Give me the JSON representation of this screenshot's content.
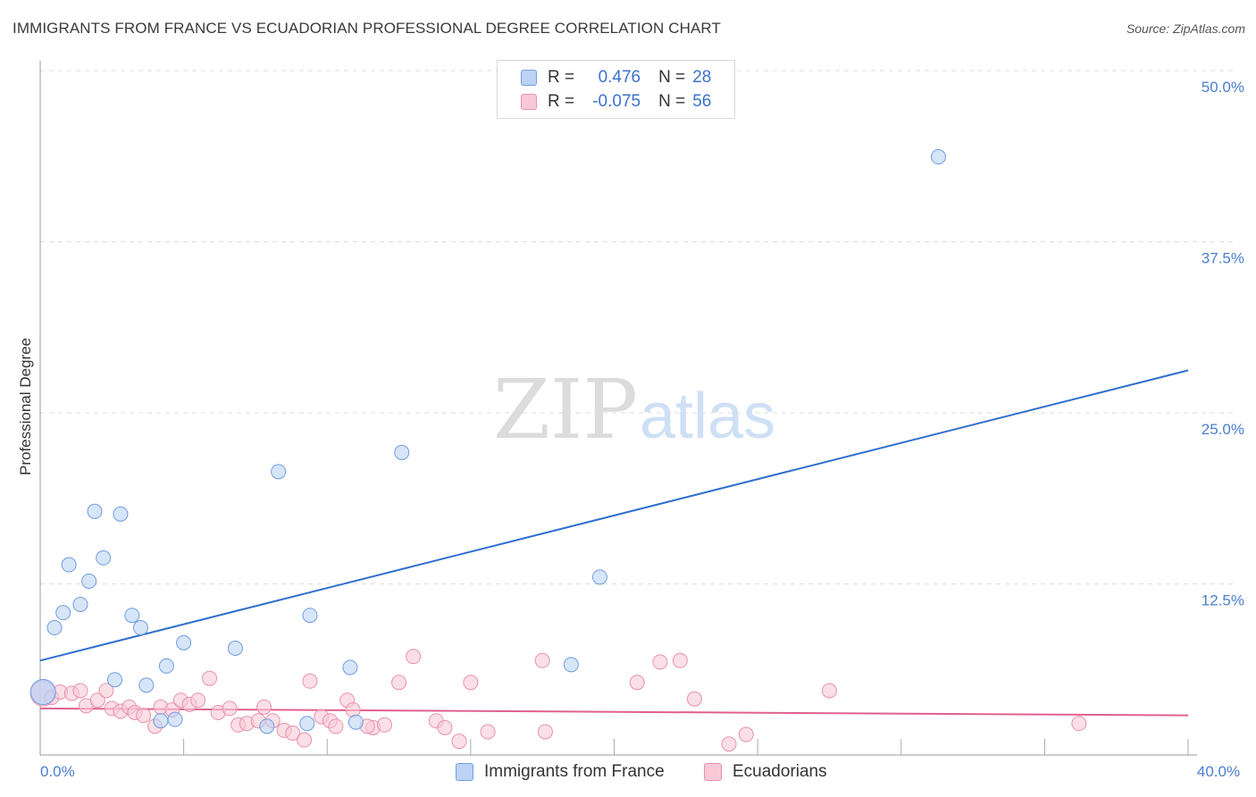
{
  "header": {
    "title": "IMMIGRANTS FROM FRANCE VS ECUADORIAN PROFESSIONAL DEGREE CORRELATION CHART",
    "source": "Source: ZipAtlas.com"
  },
  "watermark": {
    "zip": "ZIP",
    "atlas": "atlas"
  },
  "legend_stats": {
    "r_label": "R =",
    "n_label": "N =",
    "france": {
      "r": "0.476",
      "n": "28"
    },
    "ecuador": {
      "r": "-0.075",
      "n": "56"
    }
  },
  "colors": {
    "france_fill": "#bcd3f5",
    "france_stroke": "#6f9de0",
    "france_line": "#2f6fce",
    "ecuador_fill": "#f9c9d7",
    "ecuador_stroke": "#e891ad",
    "ecuador_line": "#e06090",
    "grid": "#dddddd",
    "tick_text": "#4a7fd0"
  },
  "chart_data": {
    "type": "scatter",
    "title": "IMMIGRANTS FROM FRANCE VS ECUADORIAN PROFESSIONAL DEGREE CORRELATION CHART",
    "xlabel": "",
    "ylabel": "Professional Degree",
    "xlim": [
      0,
      40
    ],
    "ylim": [
      0,
      50
    ],
    "x_tick_labels": [
      {
        "value": 0,
        "label": "0.0%"
      },
      {
        "value": 40,
        "label": "40.0%"
      }
    ],
    "y_tick_labels": [
      {
        "value": 12.5,
        "label": "12.5%"
      },
      {
        "value": 25,
        "label": "25.0%"
      },
      {
        "value": 37.5,
        "label": "37.5%"
      },
      {
        "value": 50,
        "label": "50.0%"
      }
    ],
    "series": [
      {
        "name": "Immigrants from France",
        "r": 0.476,
        "n": 28,
        "trend": {
          "x0": 0,
          "y0": 6.9,
          "x1": 40,
          "y1": 28.1
        },
        "points": [
          {
            "x": 0.1,
            "y": 4.6,
            "big": true
          },
          {
            "x": 0.5,
            "y": 9.3
          },
          {
            "x": 0.8,
            "y": 10.4
          },
          {
            "x": 1.0,
            "y": 13.9
          },
          {
            "x": 1.4,
            "y": 11.0
          },
          {
            "x": 1.7,
            "y": 12.7
          },
          {
            "x": 1.9,
            "y": 17.8
          },
          {
            "x": 2.2,
            "y": 14.4
          },
          {
            "x": 2.6,
            "y": 5.5
          },
          {
            "x": 2.8,
            "y": 17.6
          },
          {
            "x": 3.2,
            "y": 10.2
          },
          {
            "x": 3.5,
            "y": 9.3
          },
          {
            "x": 3.7,
            "y": 5.1
          },
          {
            "x": 4.2,
            "y": 2.5
          },
          {
            "x": 4.4,
            "y": 6.5
          },
          {
            "x": 4.7,
            "y": 2.6
          },
          {
            "x": 5.0,
            "y": 8.2
          },
          {
            "x": 6.8,
            "y": 7.8
          },
          {
            "x": 7.9,
            "y": 2.1
          },
          {
            "x": 8.3,
            "y": 20.7
          },
          {
            "x": 9.3,
            "y": 2.3
          },
          {
            "x": 9.4,
            "y": 10.2
          },
          {
            "x": 10.8,
            "y": 6.4
          },
          {
            "x": 11.0,
            "y": 2.4
          },
          {
            "x": 12.6,
            "y": 22.1
          },
          {
            "x": 18.5,
            "y": 6.6
          },
          {
            "x": 19.5,
            "y": 13.0
          },
          {
            "x": 31.3,
            "y": 43.7
          }
        ]
      },
      {
        "name": "Ecuadorians",
        "r": -0.075,
        "n": 56,
        "trend": {
          "x0": 0,
          "y0": 3.4,
          "x1": 40,
          "y1": 2.9
        },
        "points": [
          {
            "x": 0.1,
            "y": 4.5,
            "big": true
          },
          {
            "x": 0.4,
            "y": 4.2
          },
          {
            "x": 0.7,
            "y": 4.6
          },
          {
            "x": 1.1,
            "y": 4.5
          },
          {
            "x": 1.4,
            "y": 4.7
          },
          {
            "x": 1.6,
            "y": 3.6
          },
          {
            "x": 2.0,
            "y": 4.0
          },
          {
            "x": 2.3,
            "y": 4.7
          },
          {
            "x": 2.5,
            "y": 3.4
          },
          {
            "x": 2.8,
            "y": 3.2
          },
          {
            "x": 3.1,
            "y": 3.5
          },
          {
            "x": 3.3,
            "y": 3.1
          },
          {
            "x": 3.6,
            "y": 2.9
          },
          {
            "x": 4.0,
            "y": 2.1
          },
          {
            "x": 4.2,
            "y": 3.5
          },
          {
            "x": 4.6,
            "y": 3.3
          },
          {
            "x": 4.9,
            "y": 4.0
          },
          {
            "x": 5.2,
            "y": 3.7
          },
          {
            "x": 5.5,
            "y": 4.0
          },
          {
            "x": 5.9,
            "y": 5.6
          },
          {
            "x": 6.2,
            "y": 3.1
          },
          {
            "x": 6.6,
            "y": 3.4
          },
          {
            "x": 6.9,
            "y": 2.2
          },
          {
            "x": 7.2,
            "y": 2.3
          },
          {
            "x": 7.6,
            "y": 2.5
          },
          {
            "x": 7.8,
            "y": 3.5
          },
          {
            "x": 8.1,
            "y": 2.5
          },
          {
            "x": 8.5,
            "y": 1.8
          },
          {
            "x": 8.8,
            "y": 1.6
          },
          {
            "x": 9.2,
            "y": 1.1
          },
          {
            "x": 9.4,
            "y": 5.4
          },
          {
            "x": 9.8,
            "y": 2.8
          },
          {
            "x": 10.1,
            "y": 2.5
          },
          {
            "x": 10.3,
            "y": 2.1
          },
          {
            "x": 10.7,
            "y": 4.0
          },
          {
            "x": 10.9,
            "y": 3.3
          },
          {
            "x": 11.6,
            "y": 2.0
          },
          {
            "x": 12.0,
            "y": 2.2
          },
          {
            "x": 12.5,
            "y": 5.3
          },
          {
            "x": 13.0,
            "y": 7.2
          },
          {
            "x": 13.8,
            "y": 2.5
          },
          {
            "x": 14.1,
            "y": 2.0
          },
          {
            "x": 14.6,
            "y": 1.0
          },
          {
            "x": 15.0,
            "y": 5.3
          },
          {
            "x": 15.6,
            "y": 1.7
          },
          {
            "x": 17.5,
            "y": 6.9
          },
          {
            "x": 17.6,
            "y": 1.7
          },
          {
            "x": 20.8,
            "y": 5.3
          },
          {
            "x": 22.3,
            "y": 6.9
          },
          {
            "x": 22.8,
            "y": 4.1
          },
          {
            "x": 24.0,
            "y": 0.8
          },
          {
            "x": 24.6,
            "y": 1.5
          },
          {
            "x": 27.5,
            "y": 4.7
          },
          {
            "x": 36.2,
            "y": 2.3
          },
          {
            "x": 21.6,
            "y": 6.8
          },
          {
            "x": 11.4,
            "y": 2.1
          }
        ]
      }
    ],
    "legend": [
      "Immigrants from France",
      "Ecuadorians"
    ],
    "grid": true
  }
}
